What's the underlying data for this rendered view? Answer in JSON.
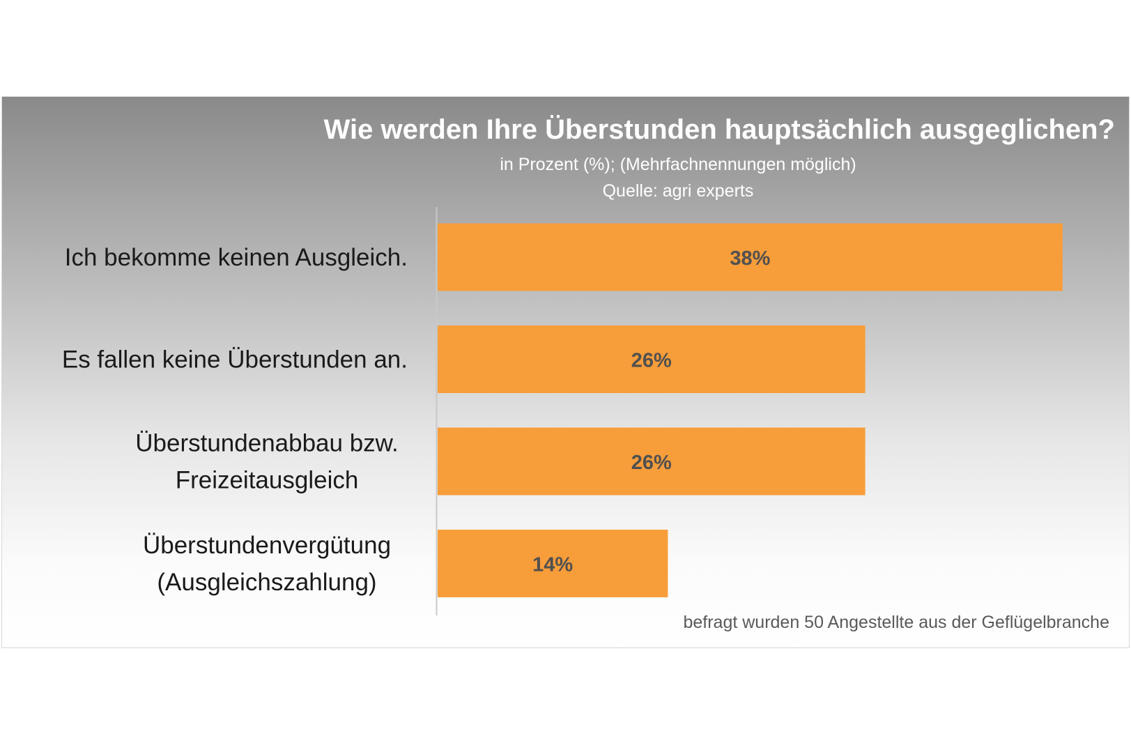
{
  "colors": {
    "bar": "#F79D3A",
    "axis": "#c8c8c8"
  },
  "chart_data": {
    "type": "bar",
    "orientation": "horizontal",
    "title": "Wie werden Ihre Überstunden hauptsächlich ausgeglichen?",
    "subtitle": "in Prozent (%); (Mehrfachnennungen möglich)",
    "source": "Quelle: agri experts",
    "footnote": "befragt wurden 50 Angestellte aus der Geflügelbranche",
    "categories": [
      [
        "Ich bekomme keinen Ausgleich."
      ],
      [
        "Es fallen keine Überstunden an."
      ],
      [
        "Überstundenabbau bzw.",
        "Freizeitausgleich"
      ],
      [
        "Überstundenvergütung",
        "(Ausgleichszahlung)"
      ]
    ],
    "values": [
      38,
      26,
      26,
      14
    ],
    "value_labels": [
      "38%",
      "26%",
      "26%",
      "14%"
    ],
    "xlim": [
      0,
      40
    ],
    "grid": false,
    "legend": false
  }
}
